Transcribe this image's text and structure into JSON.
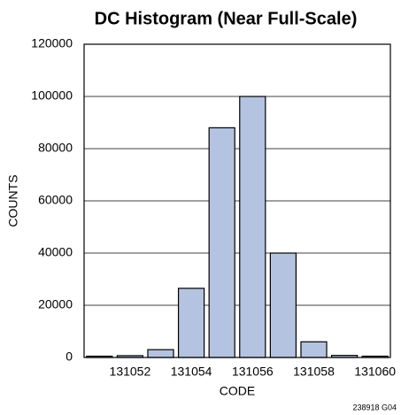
{
  "chart_data": {
    "type": "bar",
    "title": "DC Histogram (Near Full-Scale)",
    "x_label": "CODE",
    "y_label": "COUNTS",
    "note": "238918 G04",
    "categories": [
      null,
      "131052",
      null,
      "131054",
      null,
      "131056",
      null,
      "131058",
      null,
      "131060"
    ],
    "values": [
      500,
      700,
      3000,
      26500,
      88000,
      100000,
      40000,
      6000,
      800,
      500
    ],
    "color": "#b4c3e0",
    "ylim": [
      0,
      120000
    ],
    "yticks": [
      0,
      20000,
      40000,
      60000,
      80000,
      100000,
      120000
    ],
    "grid": true
  }
}
